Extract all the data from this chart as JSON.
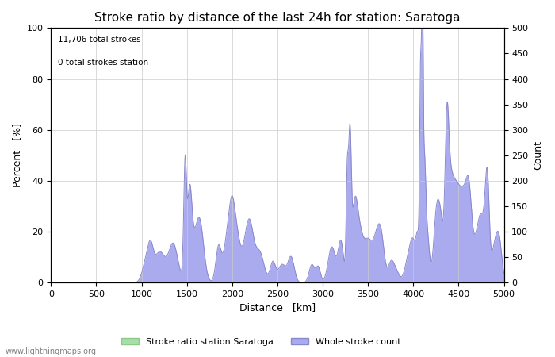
{
  "title": "Stroke ratio by distance of the last 24h for station: Saratoga",
  "xlabel": "Distance   [km]",
  "ylabel_left": "Percent   [%]",
  "ylabel_right": "Count",
  "annotation_line1": "11,706 total strokes",
  "annotation_line2": "0 total strokes station",
  "xlim": [
    0,
    5000
  ],
  "ylim_left": [
    0,
    100
  ],
  "ylim_right": [
    0,
    500
  ],
  "xticks": [
    0,
    500,
    1000,
    1500,
    2000,
    2500,
    3000,
    3500,
    4000,
    4500,
    5000
  ],
  "yticks_left": [
    0,
    20,
    40,
    60,
    80,
    100
  ],
  "yticks_right": [
    0,
    50,
    100,
    150,
    200,
    250,
    300,
    350,
    400,
    450,
    500
  ],
  "fill_color_blue": "#aaaaee",
  "fill_color_green": "#aaddaa",
  "line_color_blue": "#8888cc",
  "line_color_green": "#88cc88",
  "background_color": "#ffffff",
  "grid_color": "#cccccc",
  "watermark": "www.lightningmaps.org",
  "legend_label_green": "Stroke ratio station Saratoga",
  "legend_label_blue": "Whole stroke count",
  "title_fontsize": 11,
  "label_fontsize": 9,
  "tick_fontsize": 8
}
